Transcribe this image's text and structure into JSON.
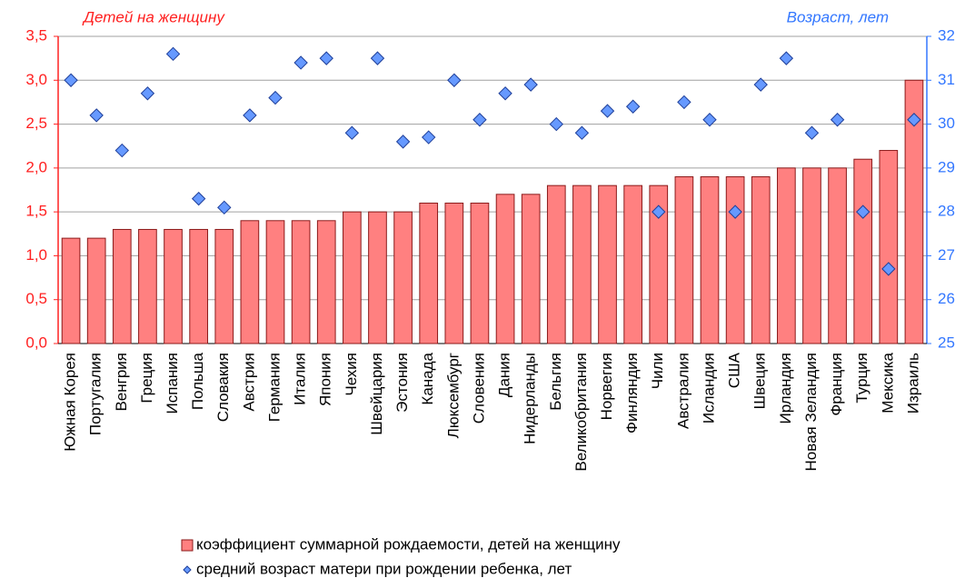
{
  "chart_data": {
    "type": "bar",
    "ylabel": "Детей на женщину",
    "y2label": "Возраст, лет",
    "categories": [
      "Южная Корея",
      "Португалия",
      "Венгрия",
      "Греция",
      "Испания",
      "Польша",
      "Словакия",
      "Австрия",
      "Германия",
      "Италия",
      "Япония",
      "Чехия",
      "Швейцария",
      "Эстония",
      "Канада",
      "Люксембург",
      "Словения",
      "Дания",
      "Нидерланды",
      "Бельгия",
      "Великобритания",
      "Норвегия",
      "Финляндия",
      "Чили",
      "Австралия",
      "Исландия",
      "США",
      "Швеция",
      "Ирландия",
      "Новая Зеландия",
      "Франция",
      "Турция",
      "Мексика",
      "Израиль"
    ],
    "series": [
      {
        "name": "коэффициент  суммарной рождаемости, детей на женщину",
        "type": "bar",
        "color": "#ff8080",
        "stroke": "#8b1a1a",
        "values": [
          1.2,
          1.2,
          1.3,
          1.3,
          1.3,
          1.3,
          1.3,
          1.4,
          1.4,
          1.4,
          1.4,
          1.5,
          1.5,
          1.5,
          1.6,
          1.6,
          1.6,
          1.7,
          1.7,
          1.8,
          1.8,
          1.8,
          1.8,
          1.8,
          1.9,
          1.9,
          1.9,
          1.9,
          2.0,
          2.0,
          2.0,
          2.1,
          2.2,
          3.0
        ]
      },
      {
        "name": "средний  возраст матери при рождении ребенка,  лет",
        "type": "scatter",
        "axis": "y2",
        "color": "#6699ff",
        "stroke": "#1f3f99",
        "values": [
          31.0,
          30.2,
          29.4,
          30.7,
          31.6,
          28.3,
          28.1,
          30.2,
          30.6,
          31.4,
          31.5,
          29.8,
          31.5,
          29.6,
          29.7,
          31.0,
          30.1,
          30.7,
          30.9,
          30.0,
          29.8,
          30.3,
          30.4,
          28.0,
          30.5,
          30.1,
          28.0,
          30.9,
          31.5,
          29.8,
          30.1,
          28.0,
          26.7,
          30.1
        ]
      }
    ],
    "ylim": [
      0,
      3.5
    ],
    "yticks": [
      {
        "value": 0,
        "label": "0,0"
      },
      {
        "value": 0.5,
        "label": "0,5"
      },
      {
        "value": 1,
        "label": "1,0"
      },
      {
        "value": 1.5,
        "label": "1,5"
      },
      {
        "value": 2,
        "label": "2,0"
      },
      {
        "value": 2.5,
        "label": "2,5"
      },
      {
        "value": 3,
        "label": "3,0"
      },
      {
        "value": 3.5,
        "label": "3,5"
      }
    ],
    "y2lim": [
      25,
      32
    ],
    "y2ticks": [
      25,
      26,
      27,
      28,
      29,
      30,
      31,
      32
    ],
    "grid": true,
    "ycolor": "#ff2020",
    "y2color": "#3377ff"
  }
}
